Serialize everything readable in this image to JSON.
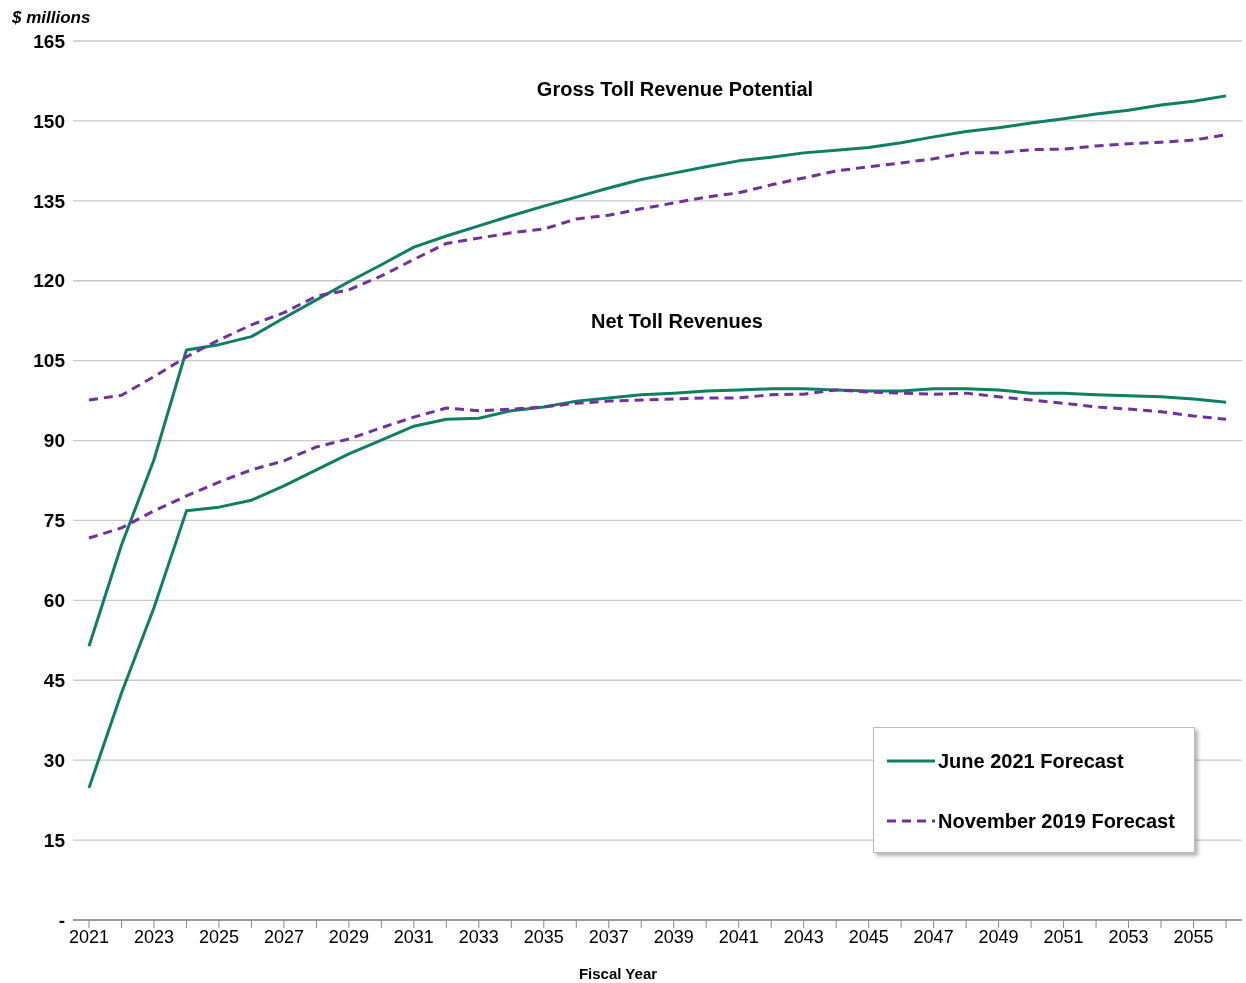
{
  "chart_data": {
    "type": "line",
    "ylabel": "$ millions",
    "xlabel": "Fiscal Year",
    "annotations": [
      "Gross Toll Revenue Potential",
      "Net Toll Revenues"
    ],
    "categories": [
      "2021",
      null,
      "2023",
      null,
      "2025",
      null,
      "2027",
      null,
      "2029",
      null,
      "2031",
      null,
      "2033",
      null,
      "2035",
      null,
      "2037",
      null,
      "2039",
      null,
      "2041",
      null,
      "2043",
      null,
      "2045",
      null,
      "2047",
      null,
      "2049",
      null,
      "2051",
      null,
      "2053",
      null,
      "2055",
      null
    ],
    "ylim": [
      0,
      165
    ],
    "yticks": [
      {
        "value": 0,
        "label": "-"
      },
      15,
      30,
      45,
      60,
      75,
      90,
      105,
      120,
      135,
      150,
      165
    ],
    "grid": "y",
    "legend": "bottom right",
    "marker": "none",
    "series": [
      {
        "name": "June 2021 Forecast",
        "color": "#0e7f62",
        "line_style": "solid",
        "values": [
          51.4,
          70.4,
          86.4,
          107,
          108,
          109.5,
          113,
          116.4,
          119.8,
          123,
          126.3,
          128.4,
          130.3,
          132.2,
          134,
          135.7,
          137.4,
          139,
          140.2,
          141.4,
          142.5,
          143.2,
          144,
          144.5,
          145,
          145.9,
          147,
          148,
          148.7,
          149.6,
          150.4,
          151.3,
          152,
          153,
          153.7,
          154.7
        ]
      },
      {
        "name": "November 2019 Forecast",
        "color": "#7030a0",
        "line_style": "dashed",
        "values": [
          97.6,
          98.5,
          102,
          105.7,
          108.9,
          111.7,
          114,
          117.1,
          118.3,
          120.9,
          124,
          127,
          128,
          129,
          129.7,
          131.6,
          132.3,
          133.5,
          134.6,
          135.7,
          136.5,
          138,
          139.3,
          140.6,
          141.4,
          142.1,
          142.9,
          144,
          144,
          144.6,
          144.7,
          145.3,
          145.7,
          146,
          146.4,
          147.4
        ]
      },
      {
        "color": "#0e7f62",
        "line_style": "solid",
        "values": [
          24.8,
          42.6,
          58.6,
          76.8,
          77.5,
          78.8,
          81.5,
          84.5,
          87.5,
          90.1,
          92.7,
          94,
          94.2,
          95.6,
          96.3,
          97.4,
          98,
          98.6,
          98.9,
          99.3,
          99.5,
          99.7,
          99.7,
          99.5,
          99.3,
          99.3,
          99.7,
          99.7,
          99.5,
          98.9,
          98.9,
          98.6,
          98.4,
          98.2,
          97.8,
          97.2
        ]
      },
      {
        "color": "#7030a0",
        "line_style": "dashed",
        "values": [
          71.7,
          73.6,
          76.8,
          79.6,
          82.2,
          84.5,
          86.2,
          88.8,
          90.3,
          92.4,
          94.4,
          96.1,
          95.6,
          95.9,
          96.3,
          97,
          97.4,
          97.6,
          97.8,
          98,
          98,
          98.6,
          98.7,
          99.5,
          99.1,
          98.9,
          98.7,
          98.9,
          98.2,
          97.6,
          97,
          96.3,
          95.9,
          95.4,
          94.6,
          94
        ]
      }
    ]
  }
}
